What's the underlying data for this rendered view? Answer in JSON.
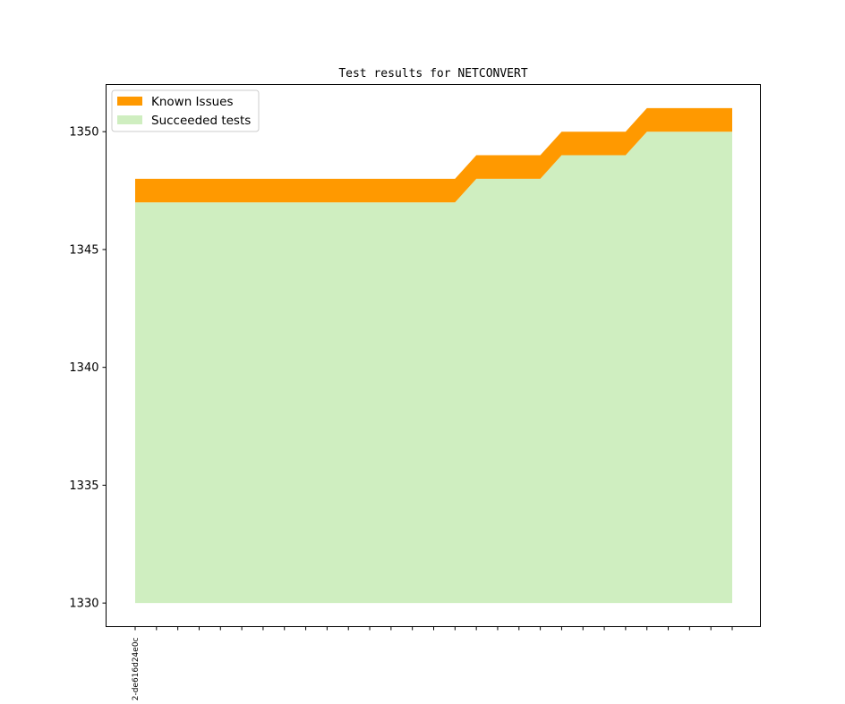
{
  "chart_data": {
    "type": "area",
    "title": "Test results for NETCONVERT",
    "xlabel": "",
    "ylabel": "",
    "ylim": [
      1329,
      1352
    ],
    "yticks": [
      1330,
      1335,
      1340,
      1345,
      1350
    ],
    "x_tick_labels": [
      "2-de616d24e0c"
    ],
    "x_tick_count": 29,
    "baseline": 1330,
    "legend": {
      "placement": "top-left",
      "entries": [
        "Known Issues",
        "Succeeded tests"
      ]
    },
    "grid": false,
    "series": [
      {
        "name": "Succeeded tests",
        "color": "#cfeec0",
        "values": [
          1347,
          1347,
          1347,
          1347,
          1347,
          1347,
          1347,
          1347,
          1347,
          1347,
          1347,
          1347,
          1347,
          1347,
          1347,
          1347,
          1348,
          1348,
          1348,
          1348,
          1349,
          1349,
          1349,
          1349,
          1350,
          1350,
          1350,
          1350,
          1350
        ]
      },
      {
        "name": "Known Issues",
        "color": "#ff9900",
        "values": [
          1,
          1,
          1,
          1,
          1,
          1,
          1,
          1,
          1,
          1,
          1,
          1,
          1,
          1,
          1,
          1,
          1,
          1,
          1,
          1,
          1,
          1,
          1,
          1,
          1,
          1,
          1,
          1,
          1
        ]
      }
    ]
  }
}
